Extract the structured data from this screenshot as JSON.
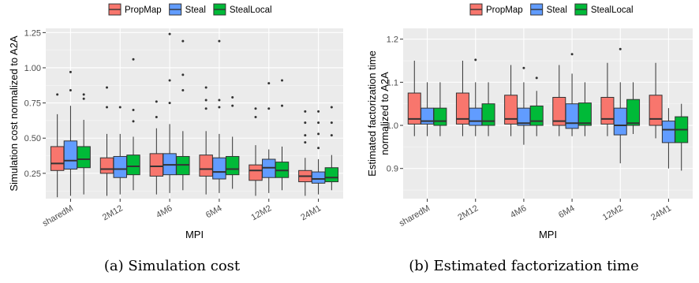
{
  "chart_data": [
    {
      "type": "boxplot",
      "caption": "(a) Simulation cost",
      "xlabel": "MPI",
      "ylabel": "Simulation cost normalized to A2A",
      "ylim": [
        0.07,
        1.28
      ],
      "yticks": [
        0.25,
        0.5,
        0.75,
        1.0,
        1.25
      ],
      "ytick_labels": [
        "0.25",
        "0.50",
        "0.75",
        "1.00",
        "1.25"
      ],
      "categories": [
        "sharedM",
        "2M12",
        "4M6",
        "6M4",
        "12M2",
        "24M1"
      ],
      "grid": true,
      "legend": {
        "position": "top",
        "entries": [
          "PropMap",
          "Steal",
          "StealLocal"
        ]
      },
      "series": [
        {
          "name": "PropMap",
          "color": "#F8766D",
          "boxes": [
            {
              "min": 0.08,
              "q1": 0.27,
              "median": 0.32,
              "q3": 0.44,
              "max": 0.67,
              "outliers": [
                0.81
              ]
            },
            {
              "min": 0.09,
              "q1": 0.25,
              "median": 0.28,
              "q3": 0.36,
              "max": 0.53,
              "outliers": [
                0.72,
                0.86
              ]
            },
            {
              "min": 0.1,
              "q1": 0.23,
              "median": 0.3,
              "q3": 0.39,
              "max": 0.57,
              "outliers": [
                0.65,
                0.76
              ]
            },
            {
              "min": 0.1,
              "q1": 0.23,
              "median": 0.28,
              "q3": 0.38,
              "max": 0.55,
              "outliers": [
                0.71,
                0.77,
                0.86
              ]
            },
            {
              "min": 0.09,
              "q1": 0.2,
              "median": 0.27,
              "q3": 0.31,
              "max": 0.45,
              "outliers": [
                0.65,
                0.71
              ]
            },
            {
              "min": 0.09,
              "q1": 0.19,
              "median": 0.23,
              "q3": 0.27,
              "max": 0.36,
              "outliers": [
                0.47,
                0.52,
                0.61,
                0.69
              ]
            }
          ]
        },
        {
          "name": "Steal",
          "color": "#619CFF",
          "boxes": [
            {
              "min": 0.09,
              "q1": 0.28,
              "median": 0.34,
              "q3": 0.48,
              "max": 0.73,
              "outliers": [
                0.84,
                0.97
              ]
            },
            {
              "min": 0.1,
              "q1": 0.22,
              "median": 0.28,
              "q3": 0.37,
              "max": 0.53,
              "outliers": [
                0.72
              ]
            },
            {
              "min": 0.11,
              "q1": 0.24,
              "median": 0.31,
              "q3": 0.39,
              "max": 0.6,
              "outliers": [
                0.75,
                0.91,
                1.24
              ]
            },
            {
              "min": 0.11,
              "q1": 0.21,
              "median": 0.26,
              "q3": 0.36,
              "max": 0.53,
              "outliers": [
                0.72,
                0.77,
                1.19
              ]
            },
            {
              "min": 0.11,
              "q1": 0.22,
              "median": 0.29,
              "q3": 0.35,
              "max": 0.42,
              "outliers": [
                0.71,
                0.89
              ]
            },
            {
              "min": 0.1,
              "q1": 0.18,
              "median": 0.21,
              "q3": 0.26,
              "max": 0.35,
              "outliers": [
                0.43,
                0.53,
                0.61,
                0.69
              ]
            }
          ]
        },
        {
          "name": "StealLocal",
          "color": "#00BA38",
          "boxes": [
            {
              "min": 0.1,
              "q1": 0.29,
              "median": 0.35,
              "q3": 0.44,
              "max": 0.63,
              "outliers": [
                0.78,
                0.81
              ]
            },
            {
              "min": 0.13,
              "q1": 0.24,
              "median": 0.3,
              "q3": 0.38,
              "max": 0.51,
              "outliers": [
                0.62,
                0.7,
                1.06
              ]
            },
            {
              "min": 0.13,
              "q1": 0.24,
              "median": 0.31,
              "q3": 0.37,
              "max": 0.55,
              "outliers": [
                0.84,
                0.95,
                1.19
              ]
            },
            {
              "min": 0.14,
              "q1": 0.24,
              "median": 0.28,
              "q3": 0.37,
              "max": 0.51,
              "outliers": [
                0.73,
                0.79
              ]
            },
            {
              "min": 0.13,
              "q1": 0.22,
              "median": 0.27,
              "q3": 0.33,
              "max": 0.44,
              "outliers": [
                0.73,
                0.91
              ]
            },
            {
              "min": 0.13,
              "q1": 0.19,
              "median": 0.22,
              "q3": 0.29,
              "max": 0.38,
              "outliers": [
                0.52,
                0.61,
                0.72
              ]
            }
          ]
        }
      ]
    },
    {
      "type": "boxplot",
      "caption": "(b) Estimated factorization time",
      "xlabel": "MPI",
      "ylabel": [
        "Estimated factorization time",
        "normalized to A2A"
      ],
      "ylim": [
        0.83,
        1.225
      ],
      "yticks": [
        0.9,
        1.0,
        1.1,
        1.2
      ],
      "ytick_labels": [
        "0.9",
        "1.0",
        "1.1",
        "1.2"
      ],
      "categories": [
        "sharedM",
        "2M12",
        "4M6",
        "6M4",
        "12M2",
        "24M1"
      ],
      "grid": true,
      "legend": {
        "position": "top",
        "entries": [
          "PropMap",
          "Steal",
          "StealLocal"
        ]
      },
      "series": [
        {
          "name": "PropMap",
          "color": "#F8766D",
          "boxes": [
            {
              "min": 0.975,
              "q1": 1.003,
              "median": 1.015,
              "q3": 1.075,
              "max": 1.15,
              "outliers": []
            },
            {
              "min": 0.975,
              "q1": 1.003,
              "median": 1.015,
              "q3": 1.075,
              "max": 1.15,
              "outliers": []
            },
            {
              "min": 0.975,
              "q1": 1.003,
              "median": 1.015,
              "q3": 1.07,
              "max": 1.14,
              "outliers": []
            },
            {
              "min": 0.975,
              "q1": 1.0,
              "median": 1.01,
              "q3": 1.065,
              "max": 1.14,
              "outliers": []
            },
            {
              "min": 0.975,
              "q1": 1.003,
              "median": 1.015,
              "q3": 1.065,
              "max": 1.145,
              "outliers": []
            },
            {
              "min": 0.97,
              "q1": 1.0,
              "median": 1.015,
              "q3": 1.07,
              "max": 1.145,
              "outliers": []
            }
          ]
        },
        {
          "name": "Steal",
          "color": "#619CFF",
          "boxes": [
            {
              "min": 0.975,
              "q1": 1.003,
              "median": 1.01,
              "q3": 1.04,
              "max": 1.1,
              "outliers": []
            },
            {
              "min": 0.975,
              "q1": 1.0,
              "median": 1.01,
              "q3": 1.04,
              "max": 1.1,
              "outliers": [
                1.152
              ]
            },
            {
              "min": 0.955,
              "q1": 1.0,
              "median": 1.005,
              "q3": 1.04,
              "max": 1.1,
              "outliers": [
                1.133
              ]
            },
            {
              "min": 0.975,
              "q1": 0.993,
              "median": 1.005,
              "q3": 1.05,
              "max": 1.12,
              "outliers": [
                1.165
              ]
            },
            {
              "min": 0.912,
              "q1": 0.978,
              "median": 1.0,
              "q3": 1.04,
              "max": 1.1,
              "outliers": [
                1.177
              ]
            },
            {
              "min": 0.9,
              "q1": 0.96,
              "median": 0.99,
              "q3": 1.01,
              "max": 1.04,
              "outliers": []
            }
          ]
        },
        {
          "name": "StealLocal",
          "color": "#00BA38",
          "boxes": [
            {
              "min": 0.975,
              "q1": 1.0,
              "median": 1.01,
              "q3": 1.04,
              "max": 1.1,
              "outliers": []
            },
            {
              "min": 0.975,
              "q1": 1.0,
              "median": 1.01,
              "q3": 1.05,
              "max": 1.1,
              "outliers": []
            },
            {
              "min": 0.975,
              "q1": 1.0,
              "median": 1.01,
              "q3": 1.045,
              "max": 1.08,
              "outliers": [
                1.11
              ]
            },
            {
              "min": 0.975,
              "q1": 1.0,
              "median": 1.005,
              "q3": 1.052,
              "max": 1.1,
              "outliers": []
            },
            {
              "min": 0.98,
              "q1": 1.0,
              "median": 1.005,
              "q3": 1.06,
              "max": 1.1,
              "outliers": []
            },
            {
              "min": 0.895,
              "q1": 0.96,
              "median": 0.99,
              "q3": 1.02,
              "max": 1.05,
              "outliers": []
            }
          ]
        }
      ]
    }
  ]
}
